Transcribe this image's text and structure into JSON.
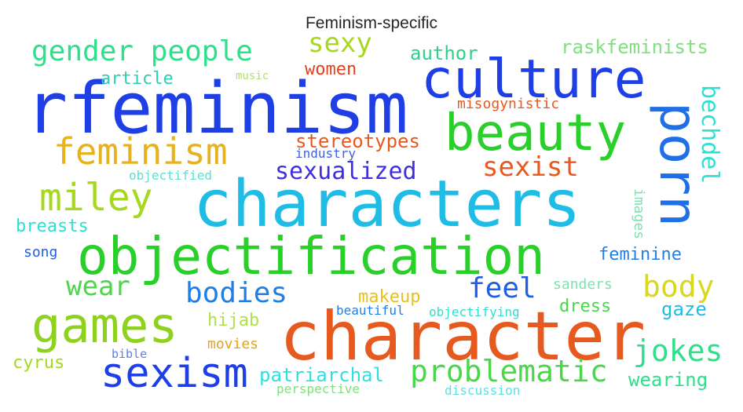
{
  "title": "Feminism-specific",
  "words": {
    "rfeminism": {
      "text": "rfeminism",
      "color": "#1f3fe6"
    },
    "characters": {
      "text": "characters",
      "color": "#1fbde6"
    },
    "character": {
      "text": "character",
      "color": "#e6591f"
    },
    "objectification": {
      "text": "objectification",
      "color": "#2ad02a"
    },
    "culture": {
      "text": "culture",
      "color": "#1f3fe6"
    },
    "beauty": {
      "text": "beauty",
      "color": "#2ad02a"
    },
    "porn": {
      "text": "porn",
      "color": "#1f6fe6"
    },
    "games": {
      "text": "games",
      "color": "#8ed21f"
    },
    "sexism": {
      "text": "sexism",
      "color": "#1f3fe6"
    },
    "feminism": {
      "text": "feminism",
      "color": "#e6b21f"
    },
    "miley": {
      "text": "miley",
      "color": "#a6d81f"
    },
    "gender_people": {
      "text": "gender people",
      "color": "#2ee08a"
    },
    "sexy": {
      "text": "sexy",
      "color": "#a6d81f"
    },
    "sexualized": {
      "text": "sexualized",
      "color": "#3f2fe0"
    },
    "sexist": {
      "text": "sexist",
      "color": "#e6591f"
    },
    "bechdel": {
      "text": "bechdel",
      "color": "#2ee0d0"
    },
    "problematic": {
      "text": "problematic",
      "color": "#4ad84a"
    },
    "jokes": {
      "text": "jokes",
      "color": "#2ee08a"
    },
    "body": {
      "text": "body",
      "color": "#d8d81f"
    },
    "bodies": {
      "text": "bodies",
      "color": "#1f7fe6"
    },
    "feel": {
      "text": "feel",
      "color": "#1f5fe6"
    },
    "wear": {
      "text": "wear",
      "color": "#4ad84a"
    },
    "stereotypes": {
      "text": "stereotypes",
      "color": "#e6591f"
    },
    "raskfeminists": {
      "text": "raskfeminists",
      "color": "#7fe07f"
    },
    "author": {
      "text": "author",
      "color": "#2ed08a"
    },
    "women": {
      "text": "women",
      "color": "#e63f1f"
    },
    "article": {
      "text": "article",
      "color": "#2ed0b0"
    },
    "music": {
      "text": "music",
      "color": "#b0e070"
    },
    "misogynistic": {
      "text": "misogynistic",
      "color": "#e6591f"
    },
    "industry": {
      "text": "industry",
      "color": "#3f5fe6"
    },
    "objectified": {
      "text": "objectified",
      "color": "#5fe0d0"
    },
    "breasts": {
      "text": "breasts",
      "color": "#2ee0d0"
    },
    "song": {
      "text": "song",
      "color": "#1f5fe6"
    },
    "images": {
      "text": "images",
      "color": "#7fe0b0"
    },
    "feminine": {
      "text": "feminine",
      "color": "#1f7fe6"
    },
    "makeup": {
      "text": "makeup",
      "color": "#e6c21f"
    },
    "sanders": {
      "text": "sanders",
      "color": "#7fe0b0"
    },
    "dress": {
      "text": "dress",
      "color": "#4ad84a"
    },
    "gaze": {
      "text": "gaze",
      "color": "#1fbde6"
    },
    "hijab": {
      "text": "hijab",
      "color": "#b0e04a"
    },
    "beautiful": {
      "text": "beautiful",
      "color": "#1f7fe6"
    },
    "objectifying": {
      "text": "objectifying",
      "color": "#2ee0d0"
    },
    "movies": {
      "text": "movies",
      "color": "#e6a21f"
    },
    "bible": {
      "text": "bible",
      "color": "#5f7fe6"
    },
    "cyrus": {
      "text": "cyrus",
      "color": "#a6d81f"
    },
    "patriarchal": {
      "text": "patriarchal",
      "color": "#2ee0e0"
    },
    "perspective": {
      "text": "perspective",
      "color": "#7fe07f"
    },
    "discussion": {
      "text": "discussion",
      "color": "#5fe0e0"
    },
    "wearing": {
      "text": "wearing",
      "color": "#2ee08a"
    }
  }
}
